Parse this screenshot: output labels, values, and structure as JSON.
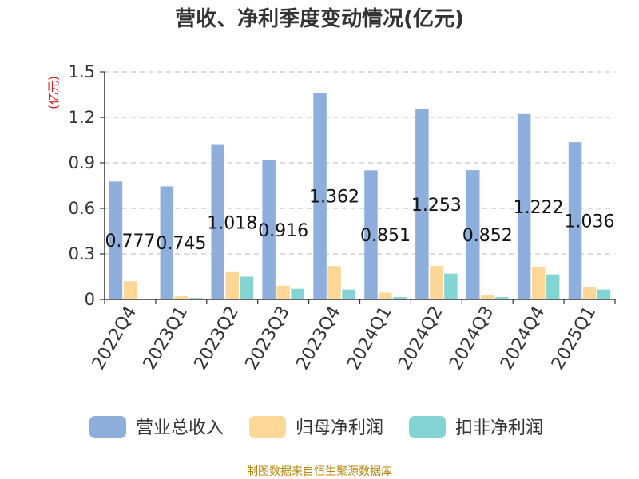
{
  "chart_data": {
    "type": "bar",
    "title": "营收、净利季度变动情况(亿元)",
    "ylabel": "(亿元)",
    "ylim": [
      0,
      1.5
    ],
    "yticks": [
      "0",
      "0.3",
      "0.6",
      "0.9",
      "1.2",
      "1.5"
    ],
    "grid": true,
    "legend_position": "bottom",
    "categories": [
      "2022Q4",
      "2023Q1",
      "2023Q2",
      "2023Q3",
      "2023Q4",
      "2024Q1",
      "2024Q2",
      "2024Q3",
      "2024Q4",
      "2025Q1"
    ],
    "series": [
      {
        "name": "营业总收入",
        "color": "#8eaedb",
        "values": [
          0.777,
          0.745,
          1.018,
          0.916,
          1.362,
          0.851,
          1.253,
          0.852,
          1.222,
          1.036
        ],
        "data_labels": [
          "0.777",
          "0.745",
          "1.018",
          "0.916",
          "1.362",
          "0.851",
          "1.253",
          "0.852",
          "1.222",
          "1.036"
        ]
      },
      {
        "name": "归母净利润",
        "color": "#fdd797",
        "values": [
          0.12,
          0.02,
          0.18,
          0.09,
          0.22,
          0.045,
          0.22,
          0.03,
          0.21,
          0.08
        ]
      },
      {
        "name": "扣非净利润",
        "color": "#84d4d4",
        "values": [
          0,
          0.01,
          0.15,
          0.07,
          0.065,
          0.015,
          0.17,
          0.015,
          0.165,
          0.065
        ]
      }
    ]
  },
  "source": "制图数据来自恒生聚源数据库"
}
